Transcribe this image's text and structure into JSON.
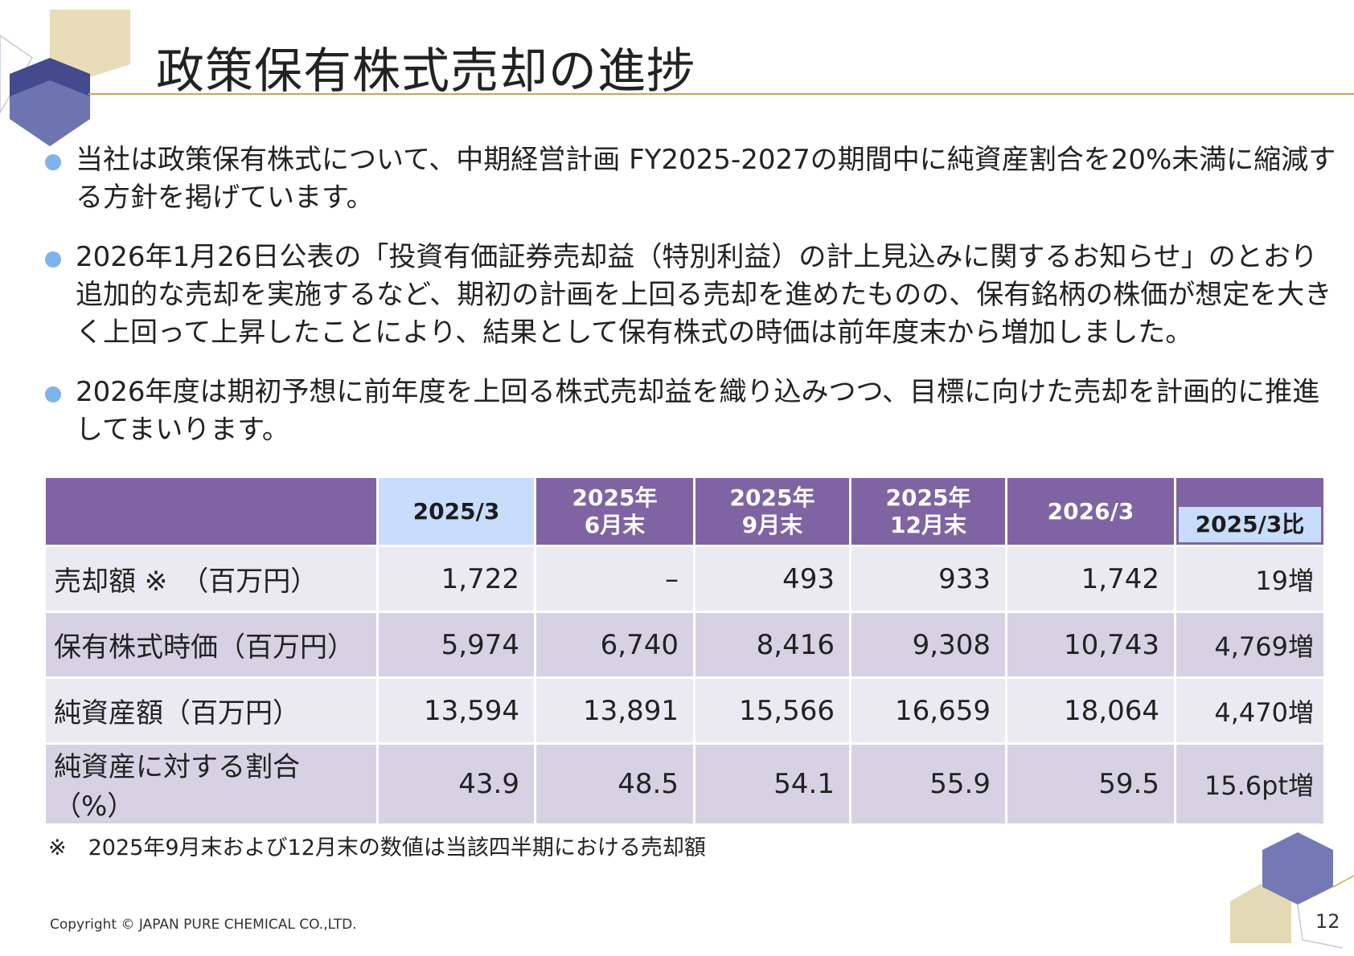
{
  "title": "政策保有株式売却の進捗",
  "bullets": [
    "当社は政策保有株式について、中期経営計画 FY2025-2027の期間中に純資産割合を20%未満に縮減する方針を掲げています。",
    "2026年1月26日公表の「投資有価証券売却益（特別利益）の計上見込みに関するお知らせ」のとおり追加的な売却を実施するなど、期初の計画を上回る売却を進めたものの、保有銘柄の株価が想定を大きく上回って上昇したことにより、結果として保有株式の時価は前年度末から増加しました。",
    "2026年度は期初予想に前年度を上回る株式売却益を織り込みつつ、目標に向けた売却を計画的に推進してまいります。"
  ],
  "table": {
    "headers": {
      "c1": "2025/3",
      "c2_line1": "2025年",
      "c2_line2": "6月末",
      "c3_line1": "2025年",
      "c3_line2": "9月末",
      "c4_line1": "2025年",
      "c4_line2": "12月末",
      "c5": "2026/3",
      "c6": "2025/3比"
    },
    "rows": [
      {
        "label": "売却額 ※　（百万円）",
        "values": [
          "1,722",
          "–",
          "493",
          "933",
          "1,742"
        ],
        "change": "19増"
      },
      {
        "label": "保有株式時価（百万円）",
        "values": [
          "5,974",
          "6,740",
          "8,416",
          "9,308",
          "10,743"
        ],
        "change": "4,769増"
      },
      {
        "label": "純資産額（百万円）",
        "values": [
          "13,594",
          "13,891",
          "15,566",
          "16,659",
          "18,064"
        ],
        "change": "4,470増"
      },
      {
        "label": "純資産に対する割合（%）",
        "values": [
          "43.9",
          "48.5",
          "54.1",
          "55.9",
          "59.5"
        ],
        "change": "15.6pt増"
      }
    ]
  },
  "note": "※　2025年9月末および12月末の数値は当該四半期における売却額",
  "copyright": "Copyright © JAPAN PURE CHEMICAL CO.,LTD.",
  "page_number": "12",
  "colors": {
    "header_purple": "#7f63a2",
    "header_highlight": "#c8dcfb",
    "row_light": "#ebe9f1",
    "row_dark": "#d6d2e3",
    "bullet_dot": "#7fb3ec",
    "gold_rule": "#c6a94e"
  }
}
